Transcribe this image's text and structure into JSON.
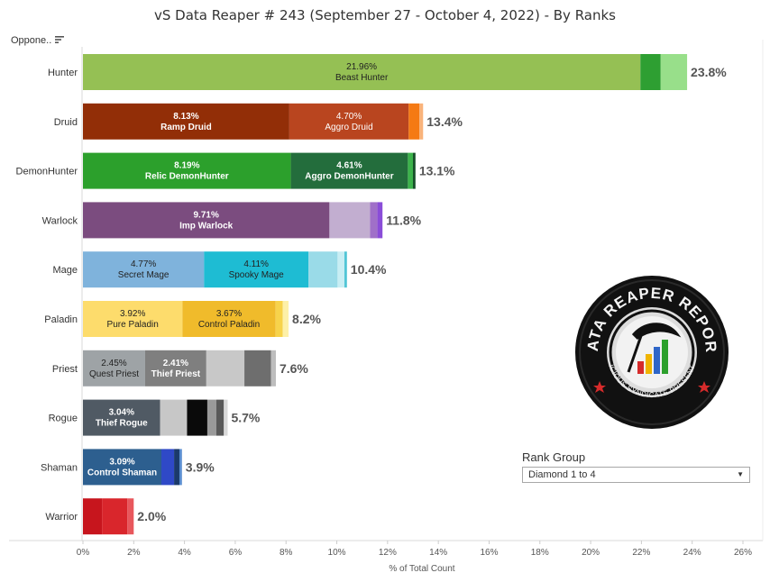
{
  "title": "vS Data Reaper #  243 (September 27 - October 4, 2022) - By Ranks",
  "column_header": "Oppone..",
  "rank_group": {
    "label": "Rank Group",
    "selected": "Diamond 1 to 4"
  },
  "logo": {
    "text_top": "DATA REAPER REPORT",
    "text_bottom": "VICIOUS SYNDICATE PRESENTS"
  },
  "chart_data": {
    "type": "bar",
    "orientation": "horizontal",
    "stacked": true,
    "title": "vS Data Reaper #  243 (September 27 - October 4, 2022) - By Ranks",
    "xlabel": "% of Total Count",
    "xlim": [
      0,
      26
    ],
    "xticks": [
      "0%",
      "2%",
      "4%",
      "6%",
      "8%",
      "10%",
      "12%",
      "14%",
      "16%",
      "18%",
      "20%",
      "22%",
      "24%",
      "26%"
    ],
    "grid": false,
    "categories": [
      "Hunter",
      "Druid",
      "DemonHunter",
      "Warlock",
      "Mage",
      "Paladin",
      "Priest",
      "Rogue",
      "Shaman",
      "Warrior"
    ],
    "rows": [
      {
        "class": "Hunter",
        "total": "23.8%",
        "segments": [
          {
            "value": 21.96,
            "color": "#95c054",
            "pct": "21.96%",
            "name": "Beast Hunter",
            "text_color": "#222222",
            "bold": false
          },
          {
            "value": 0.8,
            "color": "#2e9f32"
          },
          {
            "value": 1.04,
            "color": "#98df8a"
          }
        ]
      },
      {
        "class": "Druid",
        "total": "13.4%",
        "segments": [
          {
            "value": 8.13,
            "color": "#922e07",
            "pct": "8.13%",
            "name": "Ramp Druid",
            "text_color": "#ffffff",
            "bold": true
          },
          {
            "value": 4.7,
            "color": "#b9451f",
            "pct": "4.70%",
            "name": "Aggro Druid",
            "text_color": "#ffffff",
            "bold": false
          },
          {
            "value": 0.42,
            "color": "#f57a13"
          },
          {
            "value": 0.15,
            "color": "#f9b37a"
          }
        ]
      },
      {
        "class": "DemonHunter",
        "total": "13.1%",
        "segments": [
          {
            "value": 8.19,
            "color": "#2ca02c",
            "pct": "8.19%",
            "name": "Relic DemonHunter",
            "text_color": "#ffffff",
            "bold": true
          },
          {
            "value": 4.61,
            "color": "#236d3c",
            "pct": "4.61%",
            "name": "Aggro DemonHunter",
            "text_color": "#ffffff",
            "bold": true
          },
          {
            "value": 0.2,
            "color": "#3cb34b"
          },
          {
            "value": 0.1,
            "color": "#17502a"
          }
        ]
      },
      {
        "class": "Warlock",
        "total": "11.8%",
        "segments": [
          {
            "value": 9.71,
            "color": "#7b4c7f",
            "pct": "9.71%",
            "name": "Imp Warlock",
            "text_color": "#ffffff",
            "bold": true
          },
          {
            "value": 1.6,
            "color": "#c2aed0"
          },
          {
            "value": 0.29,
            "color": "#a070c8"
          },
          {
            "value": 0.2,
            "color": "#8a4dd8"
          }
        ]
      },
      {
        "class": "Mage",
        "total": "10.4%",
        "segments": [
          {
            "value": 4.77,
            "color": "#7fb3dc",
            "pct": "4.77%",
            "name": "Secret Mage",
            "text_color": "#222222",
            "bold": false
          },
          {
            "value": 4.11,
            "color": "#1ebcd3",
            "pct": "4.11%",
            "name": "Spooky Mage",
            "text_color": "#222222",
            "bold": false
          },
          {
            "value": 1.15,
            "color": "#9adbe8"
          },
          {
            "value": 0.27,
            "color": "#c8eef4"
          },
          {
            "value": 0.1,
            "color": "#52c6d6"
          }
        ]
      },
      {
        "class": "Paladin",
        "total": "8.2%",
        "segments": [
          {
            "value": 3.92,
            "color": "#fddc6c",
            "pct": "3.92%",
            "name": "Pure Paladin",
            "text_color": "#222222",
            "bold": false
          },
          {
            "value": 3.67,
            "color": "#f0bb2b",
            "pct": "3.67%",
            "name": "Control Paladin",
            "text_color": "#222222",
            "bold": false
          },
          {
            "value": 0.28,
            "color": "#f7d34b"
          },
          {
            "value": 0.23,
            "color": "#fdf0a8"
          }
        ]
      },
      {
        "class": "Priest",
        "total": "7.6%",
        "segments": [
          {
            "value": 2.45,
            "color": "#9ea3a6",
            "pct": "2.45%",
            "name": "Quest Priest",
            "text_color": "#222222",
            "bold": false
          },
          {
            "value": 2.41,
            "color": "#7f7f7f",
            "pct": "2.41%",
            "name": "Thief Priest",
            "text_color": "#ffffff",
            "bold": true
          },
          {
            "value": 1.5,
            "color": "#c8c8c8"
          },
          {
            "value": 1.05,
            "color": "#6e6e6e"
          },
          {
            "value": 0.19,
            "color": "#bdbdbd"
          }
        ]
      },
      {
        "class": "Rogue",
        "total": "5.7%",
        "segments": [
          {
            "value": 3.04,
            "color": "#505a64",
            "pct": "3.04%",
            "name": "Thief Rogue",
            "text_color": "#ffffff",
            "bold": true
          },
          {
            "value": 1.06,
            "color": "#c7c7c7"
          },
          {
            "value": 0.8,
            "color": "#0a0a0a"
          },
          {
            "value": 0.35,
            "color": "#9a9a9a"
          },
          {
            "value": 0.3,
            "color": "#595959"
          },
          {
            "value": 0.15,
            "color": "#d9d9d9"
          }
        ]
      },
      {
        "class": "Shaman",
        "total": "3.9%",
        "segments": [
          {
            "value": 3.09,
            "color": "#2d5f8f",
            "pct": "3.09%",
            "name": "Control Shaman",
            "text_color": "#ffffff",
            "bold": true
          },
          {
            "value": 0.5,
            "color": "#2f49c7"
          },
          {
            "value": 0.21,
            "color": "#1b3a6b"
          },
          {
            "value": 0.1,
            "color": "#5b8ed0"
          }
        ]
      },
      {
        "class": "Warrior",
        "total": "2.0%",
        "segments": [
          {
            "value": 0.75,
            "color": "#c7151d"
          },
          {
            "value": 1.0,
            "color": "#d9262c"
          },
          {
            "value": 0.25,
            "color": "#e8575c"
          }
        ]
      }
    ]
  }
}
